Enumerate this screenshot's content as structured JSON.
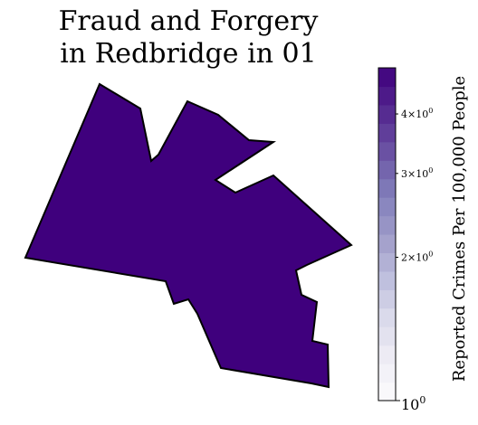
{
  "chart_data": {
    "type": "choropleth",
    "title_lines": [
      "Fraud and Forgery",
      "in Redbridge in 01"
    ],
    "regions": [
      {
        "name": "Redbridge",
        "fill": "#3f007d"
      }
    ],
    "colorbar": {
      "label": "Reported Crimes Per 100,000 People",
      "scale": "log",
      "range": [
        1,
        5
      ],
      "ticks": [
        {
          "value": 1,
          "base": "10",
          "exponent": "0",
          "major": true
        },
        {
          "value": 2,
          "base": "2×10",
          "exponent": "0",
          "major": false
        },
        {
          "value": 3,
          "base": "3×10",
          "exponent": "0",
          "major": false
        },
        {
          "value": 4,
          "base": "4×10",
          "exponent": "0",
          "major": false
        }
      ],
      "colors": [
        "#fcfbfd",
        "#efedf5",
        "#dadaeb",
        "#bcbddc",
        "#9e9ac8",
        "#807dba",
        "#6a51a3",
        "#54278f",
        "#3f007d"
      ]
    }
  }
}
